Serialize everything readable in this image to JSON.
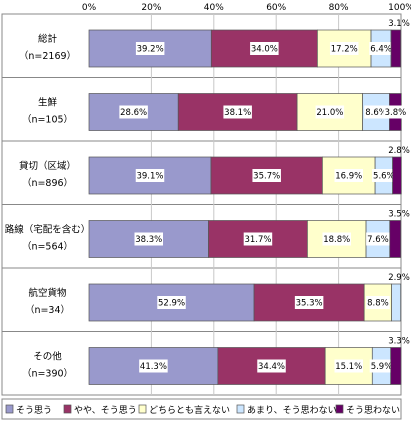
{
  "chart_data": {
    "type": "bar",
    "orientation": "horizontal",
    "stacked": true,
    "percent": true,
    "xlim": [
      0,
      100
    ],
    "xticks": [
      "0%",
      "20%",
      "40%",
      "60%",
      "80%",
      "100%"
    ],
    "categories": [
      {
        "name": "総計",
        "n": "（n=2169）"
      },
      {
        "name": "生鮮",
        "n": "（n=105）"
      },
      {
        "name": "貸切（区域）",
        "n": "（n=896）"
      },
      {
        "name": "路線（宅配を含む）",
        "n": "（n=564）"
      },
      {
        "name": "航空貨物",
        "n": "（n=34）"
      },
      {
        "name": "その他",
        "n": "（n=390）"
      }
    ],
    "series": [
      {
        "name": "そう思う",
        "color": "#9999cc",
        "values": [
          39.2,
          28.6,
          39.1,
          38.3,
          52.9,
          41.3
        ]
      },
      {
        "name": "やや、そう思う",
        "color": "#993366",
        "values": [
          34.0,
          38.1,
          35.7,
          31.7,
          35.3,
          34.4
        ]
      },
      {
        "name": "どちらとも言えない",
        "color": "#ffffcc",
        "values": [
          17.2,
          21.0,
          16.9,
          18.8,
          8.8,
          15.1
        ]
      },
      {
        "name": "あまり、そう思わない",
        "color": "#cce6ff",
        "values": [
          6.4,
          8.6,
          5.6,
          7.6,
          2.9,
          5.9
        ]
      },
      {
        "name": "そう思わない",
        "color": "#660066",
        "values": [
          3.1,
          3.8,
          2.8,
          3.5,
          0.0,
          3.3
        ]
      }
    ],
    "data_labels": [
      {
        "inside": [
          "39.2%",
          "34.0%",
          "17.2%",
          "6.4%",
          ""
        ],
        "outside": "3.1%"
      },
      {
        "inside": [
          "28.6%",
          "38.1%",
          "21.0%",
          "8.6%",
          "3.8%"
        ],
        "outside": ""
      },
      {
        "inside": [
          "39.1%",
          "35.7%",
          "16.9%",
          "5.6%",
          ""
        ],
        "outside": "2.8%"
      },
      {
        "inside": [
          "38.3%",
          "31.7%",
          "18.8%",
          "7.6%",
          ""
        ],
        "outside": "3.5%"
      },
      {
        "inside": [
          "52.9%",
          "35.3%",
          "8.8%",
          "",
          ""
        ],
        "outside": "2.9%"
      },
      {
        "inside": [
          "41.3%",
          "34.4%",
          "15.1%",
          "5.9%",
          ""
        ],
        "outside": "3.3%"
      }
    ],
    "legend_position": "bottom",
    "grid": true
  }
}
